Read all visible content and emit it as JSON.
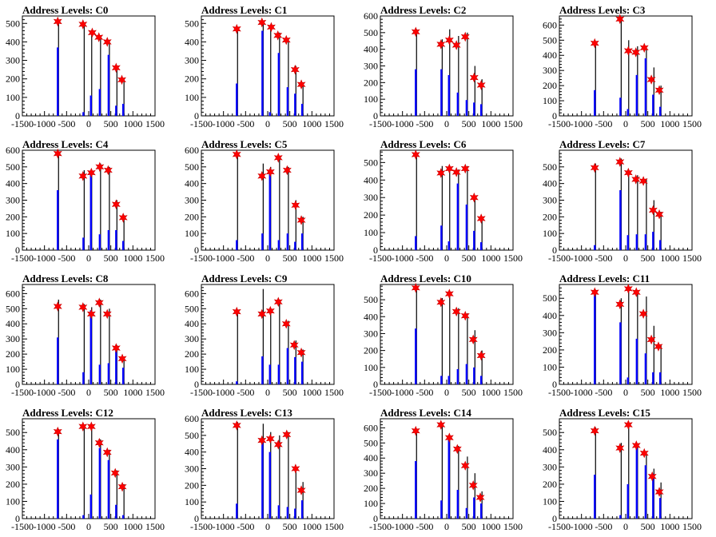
{
  "chart_data": [
    {
      "type": "bar",
      "title": "Address Levels: C0",
      "xlim": [
        -1500,
        1500
      ],
      "ylim": [
        0,
        540
      ],
      "yticks": [
        0,
        100,
        200,
        300,
        400,
        500
      ],
      "x": [
        -700,
        -120,
        50,
        250,
        450,
        620,
        780
      ],
      "black": [
        520,
        490,
        460,
        430,
        410,
        270,
        200
      ],
      "blue": [
        370,
        20,
        110,
        145,
        330,
        55,
        65
      ],
      "markers": [
        {
          "x": -700,
          "y": 510
        },
        {
          "x": -130,
          "y": 495
        },
        {
          "x": 80,
          "y": 450
        },
        {
          "x": 230,
          "y": 425
        },
        {
          "x": 420,
          "y": 400
        },
        {
          "x": 620,
          "y": 260
        },
        {
          "x": 750,
          "y": 195
        }
      ]
    },
    {
      "type": "bar",
      "title": "Address Levels: C1",
      "xlim": [
        -1500,
        1500
      ],
      "ylim": [
        0,
        540
      ],
      "yticks": [
        0,
        100,
        200,
        300,
        400,
        500
      ],
      "x": [
        -700,
        -120,
        50,
        250,
        450,
        620,
        780
      ],
      "black": [
        480,
        500,
        490,
        450,
        420,
        270,
        180
      ],
      "blue": [
        175,
        460,
        20,
        340,
        155,
        120,
        65
      ],
      "markers": [
        {
          "x": -700,
          "y": 470
        },
        {
          "x": -130,
          "y": 505
        },
        {
          "x": 80,
          "y": 480
        },
        {
          "x": 230,
          "y": 435
        },
        {
          "x": 420,
          "y": 410
        },
        {
          "x": 620,
          "y": 250
        },
        {
          "x": 760,
          "y": 170
        }
      ]
    },
    {
      "type": "bar",
      "title": "Address Levels: C2",
      "xlim": [
        -1500,
        1500
      ],
      "ylim": [
        0,
        600
      ],
      "yticks": [
        0,
        100,
        200,
        300,
        400,
        500,
        600
      ],
      "x": [
        -700,
        -120,
        50,
        250,
        450,
        620,
        780
      ],
      "black": [
        520,
        460,
        520,
        480,
        500,
        300,
        220
      ],
      "blue": [
        280,
        280,
        245,
        140,
        95,
        80,
        70
      ],
      "markers": [
        {
          "x": -700,
          "y": 505
        },
        {
          "x": -130,
          "y": 430
        },
        {
          "x": 60,
          "y": 455
        },
        {
          "x": 220,
          "y": 425
        },
        {
          "x": 420,
          "y": 475
        },
        {
          "x": 620,
          "y": 230
        },
        {
          "x": 780,
          "y": 185
        }
      ]
    },
    {
      "type": "bar",
      "title": "Address Levels: C3",
      "xlim": [
        -1500,
        1500
      ],
      "ylim": [
        0,
        660
      ],
      "yticks": [
        0,
        100,
        200,
        300,
        400,
        500,
        600
      ],
      "x": [
        -700,
        -120,
        50,
        250,
        450,
        620,
        780
      ],
      "black": [
        490,
        640,
        500,
        460,
        460,
        320,
        200
      ],
      "blue": [
        170,
        120,
        45,
        270,
        380,
        140,
        60
      ],
      "markers": [
        {
          "x": -700,
          "y": 480
        },
        {
          "x": -130,
          "y": 640
        },
        {
          "x": 60,
          "y": 430
        },
        {
          "x": 230,
          "y": 420
        },
        {
          "x": 420,
          "y": 450
        },
        {
          "x": 580,
          "y": 240
        },
        {
          "x": 760,
          "y": 170
        }
      ]
    },
    {
      "type": "bar",
      "title": "Address Levels: C4",
      "xlim": [
        -1500,
        1500
      ],
      "ylim": [
        0,
        600
      ],
      "yticks": [
        0,
        100,
        200,
        300,
        400,
        500,
        600
      ],
      "x": [
        -700,
        -120,
        50,
        250,
        450,
        620,
        780
      ],
      "black": [
        590,
        480,
        480,
        520,
        500,
        300,
        210
      ],
      "blue": [
        360,
        75,
        470,
        95,
        120,
        120,
        55
      ],
      "markers": [
        {
          "x": -700,
          "y": 580
        },
        {
          "x": -130,
          "y": 445
        },
        {
          "x": 60,
          "y": 465
        },
        {
          "x": 250,
          "y": 500
        },
        {
          "x": 440,
          "y": 480
        },
        {
          "x": 620,
          "y": 275
        },
        {
          "x": 780,
          "y": 195
        }
      ]
    },
    {
      "type": "bar",
      "title": "Address Levels: C5",
      "xlim": [
        -1500,
        1500
      ],
      "ylim": [
        0,
        600
      ],
      "yticks": [
        0,
        100,
        200,
        300,
        400,
        500,
        600
      ],
      "x": [
        -700,
        -120,
        50,
        250,
        450,
        620,
        780
      ],
      "black": [
        580,
        520,
        500,
        560,
        500,
        300,
        200
      ],
      "blue": [
        60,
        100,
        470,
        60,
        100,
        50,
        100
      ],
      "markers": [
        {
          "x": -700,
          "y": 575
        },
        {
          "x": -130,
          "y": 445
        },
        {
          "x": 60,
          "y": 470
        },
        {
          "x": 240,
          "y": 555
        },
        {
          "x": 440,
          "y": 480
        },
        {
          "x": 630,
          "y": 270
        },
        {
          "x": 760,
          "y": 180
        }
      ]
    },
    {
      "type": "bar",
      "title": "Address Levels: C6",
      "xlim": [
        -1500,
        1500
      ],
      "ylim": [
        0,
        570
      ],
      "yticks": [
        0,
        100,
        200,
        300,
        400,
        500
      ],
      "x": [
        -700,
        -120,
        50,
        250,
        450,
        620,
        780
      ],
      "black": [
        550,
        480,
        480,
        460,
        480,
        310,
        190
      ],
      "blue": [
        80,
        140,
        50,
        380,
        260,
        110,
        45
      ],
      "markers": [
        {
          "x": -700,
          "y": 545
        },
        {
          "x": -130,
          "y": 440
        },
        {
          "x": 60,
          "y": 465
        },
        {
          "x": 220,
          "y": 445
        },
        {
          "x": 420,
          "y": 465
        },
        {
          "x": 620,
          "y": 300
        },
        {
          "x": 780,
          "y": 180
        }
      ]
    },
    {
      "type": "bar",
      "title": "Address Levels: C7",
      "xlim": [
        -1500,
        1500
      ],
      "ylim": [
        0,
        600
      ],
      "yticks": [
        0,
        100,
        200,
        300,
        400,
        500
      ],
      "x": [
        -700,
        -120,
        50,
        250,
        450,
        620,
        780
      ],
      "black": [
        520,
        550,
        480,
        450,
        430,
        300,
        230
      ],
      "blue": [
        30,
        360,
        90,
        95,
        95,
        110,
        60
      ],
      "markers": [
        {
          "x": -700,
          "y": 495
        },
        {
          "x": -130,
          "y": 530
        },
        {
          "x": 60,
          "y": 465
        },
        {
          "x": 230,
          "y": 425
        },
        {
          "x": 400,
          "y": 415
        },
        {
          "x": 620,
          "y": 240
        },
        {
          "x": 760,
          "y": 215
        }
      ]
    },
    {
      "type": "bar",
      "title": "Address Levels: C8",
      "xlim": [
        -1500,
        1500
      ],
      "ylim": [
        0,
        660
      ],
      "yticks": [
        0,
        100,
        200,
        300,
        400,
        500,
        600
      ],
      "x": [
        -700,
        -120,
        50,
        250,
        450,
        620,
        780
      ],
      "black": [
        560,
        530,
        510,
        560,
        500,
        260,
        180
      ],
      "blue": [
        310,
        80,
        490,
        130,
        140,
        220,
        110
      ],
      "markers": [
        {
          "x": -700,
          "y": 515
        },
        {
          "x": -130,
          "y": 510
        },
        {
          "x": 60,
          "y": 465
        },
        {
          "x": 240,
          "y": 540
        },
        {
          "x": 420,
          "y": 465
        },
        {
          "x": 620,
          "y": 240
        },
        {
          "x": 760,
          "y": 170
        }
      ]
    },
    {
      "type": "bar",
      "title": "Address Levels: C9",
      "xlim": [
        -1500,
        1500
      ],
      "ylim": [
        0,
        660
      ],
      "yticks": [
        0,
        100,
        200,
        300,
        400,
        500,
        600
      ],
      "x": [
        -700,
        -120,
        50,
        250,
        450,
        620,
        780
      ],
      "black": [
        490,
        630,
        500,
        560,
        420,
        290,
        230
      ],
      "blue": [
        20,
        185,
        130,
        130,
        240,
        180,
        150
      ],
      "markers": [
        {
          "x": -700,
          "y": 480
        },
        {
          "x": -130,
          "y": 465
        },
        {
          "x": 60,
          "y": 485
        },
        {
          "x": 240,
          "y": 545
        },
        {
          "x": 420,
          "y": 400
        },
        {
          "x": 600,
          "y": 260
        },
        {
          "x": 760,
          "y": 210
        }
      ]
    },
    {
      "type": "bar",
      "title": "Address Levels: C10",
      "xlim": [
        -1500,
        1500
      ],
      "ylim": [
        0,
        590
      ],
      "yticks": [
        0,
        100,
        200,
        300,
        400,
        500
      ],
      "x": [
        -700,
        -120,
        50,
        250,
        450,
        620,
        780
      ],
      "black": [
        580,
        510,
        540,
        450,
        420,
        320,
        200
      ],
      "blue": [
        330,
        50,
        50,
        90,
        120,
        100,
        50
      ],
      "markers": [
        {
          "x": -700,
          "y": 570
        },
        {
          "x": -130,
          "y": 485
        },
        {
          "x": 60,
          "y": 535
        },
        {
          "x": 220,
          "y": 430
        },
        {
          "x": 420,
          "y": 405
        },
        {
          "x": 600,
          "y": 265
        },
        {
          "x": 780,
          "y": 170
        }
      ]
    },
    {
      "type": "bar",
      "title": "Address Levels: C11",
      "xlim": [
        -1500,
        1500
      ],
      "ylim": [
        0,
        580
      ],
      "yticks": [
        0,
        100,
        200,
        300,
        400,
        500
      ],
      "x": [
        -700,
        -120,
        50,
        250,
        450,
        620,
        780
      ],
      "black": [
        550,
        500,
        560,
        540,
        510,
        340,
        230
      ],
      "blue": [
        520,
        360,
        40,
        265,
        180,
        70,
        70
      ],
      "markers": [
        {
          "x": -700,
          "y": 535
        },
        {
          "x": -130,
          "y": 465
        },
        {
          "x": 60,
          "y": 555
        },
        {
          "x": 240,
          "y": 535
        },
        {
          "x": 400,
          "y": 410
        },
        {
          "x": 580,
          "y": 260
        },
        {
          "x": 740,
          "y": 220
        }
      ]
    },
    {
      "type": "bar",
      "title": "Address Levels: C12",
      "xlim": [
        -1500,
        1500
      ],
      "ylim": [
        0,
        580
      ],
      "yticks": [
        0,
        100,
        200,
        300,
        400,
        500
      ],
      "x": [
        -700,
        -120,
        50,
        250,
        450,
        620,
        780
      ],
      "black": [
        520,
        540,
        540,
        460,
        400,
        280,
        200
      ],
      "blue": [
        460,
        20,
        140,
        410,
        340,
        80,
        20
      ],
      "markers": [
        {
          "x": -700,
          "y": 505
        },
        {
          "x": -130,
          "y": 535
        },
        {
          "x": 60,
          "y": 535
        },
        {
          "x": 240,
          "y": 440
        },
        {
          "x": 420,
          "y": 385
        },
        {
          "x": 600,
          "y": 265
        },
        {
          "x": 760,
          "y": 185
        }
      ]
    },
    {
      "type": "bar",
      "title": "Address Levels: C13",
      "xlim": [
        -1500,
        1500
      ],
      "ylim": [
        0,
        600
      ],
      "yticks": [
        0,
        100,
        200,
        300,
        400,
        500,
        600
      ],
      "x": [
        -700,
        -120,
        50,
        250,
        450,
        620,
        780
      ],
      "black": [
        580,
        570,
        520,
        500,
        520,
        310,
        220
      ],
      "blue": [
        90,
        470,
        400,
        80,
        70,
        60,
        110
      ],
      "markers": [
        {
          "x": -700,
          "y": 560
        },
        {
          "x": -130,
          "y": 470
        },
        {
          "x": 60,
          "y": 480
        },
        {
          "x": 240,
          "y": 445
        },
        {
          "x": 430,
          "y": 505
        },
        {
          "x": 630,
          "y": 300
        },
        {
          "x": 760,
          "y": 170
        }
      ]
    },
    {
      "type": "bar",
      "title": "Address Levels: C14",
      "xlim": [
        -1500,
        1500
      ],
      "ylim": [
        0,
        660
      ],
      "yticks": [
        0,
        100,
        200,
        300,
        400,
        500,
        600
      ],
      "x": [
        -700,
        -120,
        50,
        250,
        450,
        620,
        780
      ],
      "black": [
        590,
        620,
        550,
        480,
        410,
        300,
        180
      ],
      "blue": [
        380,
        120,
        550,
        190,
        70,
        140,
        100
      ],
      "markers": [
        {
          "x": -700,
          "y": 580
        },
        {
          "x": -130,
          "y": 620
        },
        {
          "x": 60,
          "y": 535
        },
        {
          "x": 240,
          "y": 460
        },
        {
          "x": 420,
          "y": 350
        },
        {
          "x": 600,
          "y": 220
        },
        {
          "x": 760,
          "y": 140
        }
      ]
    },
    {
      "type": "bar",
      "title": "Address Levels: C15",
      "xlim": [
        -1500,
        1500
      ],
      "ylim": [
        0,
        580
      ],
      "yticks": [
        0,
        100,
        200,
        300,
        400,
        500
      ],
      "x": [
        -700,
        -120,
        50,
        250,
        450,
        620,
        780
      ],
      "black": [
        530,
        440,
        560,
        430,
        380,
        290,
        210
      ],
      "blue": [
        255,
        20,
        200,
        410,
        310,
        260,
        120
      ],
      "markers": [
        {
          "x": -700,
          "y": 510
        },
        {
          "x": -130,
          "y": 410
        },
        {
          "x": 60,
          "y": 545
        },
        {
          "x": 240,
          "y": 425
        },
        {
          "x": 420,
          "y": 380
        },
        {
          "x": 600,
          "y": 245
        },
        {
          "x": 760,
          "y": 155
        }
      ]
    }
  ],
  "xticks": [
    -1500,
    -1000,
    -500,
    0,
    500,
    1000,
    1500
  ],
  "xtick_labels": [
    "-1500",
    "-1000",
    "-500",
    "0",
    "500",
    "1000",
    "1500"
  ],
  "colors": {
    "bar_primary": "#000000",
    "bar_secondary": "#0000ff",
    "marker": "#ff0000"
  }
}
